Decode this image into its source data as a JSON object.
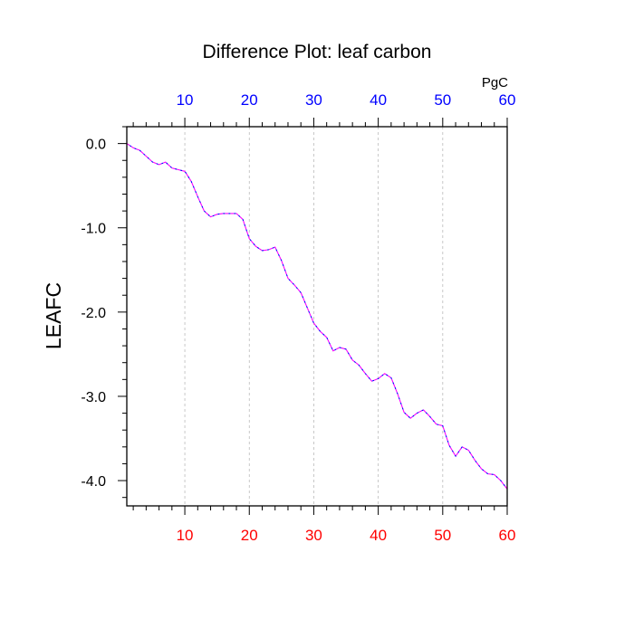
{
  "chart_data": {
    "type": "line",
    "title": "Difference Plot: leaf carbon",
    "ylabel": "LEAFC",
    "top_axis_unit": "PgC",
    "xlim": [
      1,
      60
    ],
    "ylim": [
      -4.3,
      0.2
    ],
    "x_ticks": [
      10,
      20,
      30,
      40,
      50,
      60
    ],
    "x_tick_labels": [
      "10",
      "20",
      "30",
      "40",
      "50",
      "60"
    ],
    "y_ticks": [
      0.0,
      -1.0,
      -2.0,
      -3.0,
      -4.0
    ],
    "y_tick_labels": [
      "0.0",
      "-1.0",
      "-2.0",
      "-3.0",
      "-4.0"
    ],
    "grid": "vertical dashed at x ticks",
    "colors": {
      "bottom_tick_labels": "#ff0000",
      "top_tick_labels": "#0000ff",
      "series_dash_a": "#ff00ff",
      "series_dash_b": "#0000ff",
      "grid": "#bbbbbb",
      "axes": "#000000"
    },
    "series": [
      {
        "x": [
          1,
          2,
          3,
          4,
          5,
          6,
          7,
          8,
          9,
          10,
          11,
          12,
          13,
          14,
          15,
          16,
          17,
          18,
          19,
          20,
          21,
          22,
          23,
          24,
          25,
          26,
          27,
          28,
          29,
          30,
          31,
          32,
          33,
          34,
          35,
          36,
          37,
          38,
          39,
          40,
          41,
          42,
          43,
          44,
          45,
          46,
          47,
          48,
          49,
          50,
          51,
          52,
          53,
          54,
          55,
          56,
          57,
          58,
          59,
          60
        ],
        "values": [
          0.0,
          -0.05,
          -0.08,
          -0.15,
          -0.22,
          -0.25,
          -0.22,
          -0.29,
          -0.31,
          -0.33,
          -0.45,
          -0.63,
          -0.8,
          -0.87,
          -0.84,
          -0.83,
          -0.83,
          -0.83,
          -0.9,
          -1.13,
          -1.22,
          -1.27,
          -1.26,
          -1.23,
          -1.39,
          -1.6,
          -1.68,
          -1.77,
          -1.95,
          -2.13,
          -2.23,
          -2.3,
          -2.46,
          -2.42,
          -2.44,
          -2.57,
          -2.63,
          -2.73,
          -2.82,
          -2.79,
          -2.73,
          -2.78,
          -2.97,
          -3.19,
          -3.26,
          -3.2,
          -3.16,
          -3.24,
          -3.33,
          -3.35,
          -3.58,
          -3.71,
          -3.6,
          -3.64,
          -3.76,
          -3.86,
          -3.92,
          -3.93,
          -4.0,
          -4.1
        ]
      }
    ]
  }
}
